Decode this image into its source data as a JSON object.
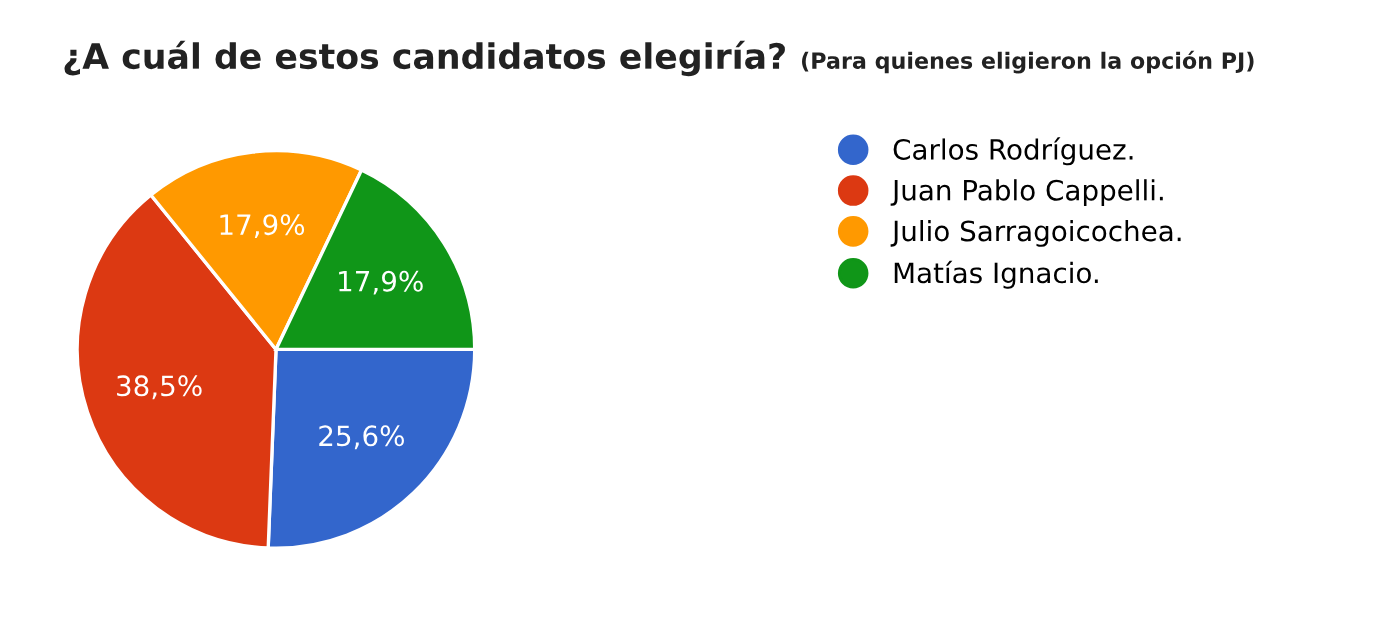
{
  "chart_data": {
    "type": "pie",
    "title": "¿A cuál de estos candidatos elegiría?",
    "subtitle": "(Para quienes eligieron la opción PJ)",
    "categories": [
      "Carlos Rodríguez.",
      "Juan Pablo Cappelli.",
      "Julio Sarragoicochea.",
      "Matías Ignacio."
    ],
    "values": [
      25.6,
      38.5,
      17.9,
      17.9
    ],
    "colors": [
      "#3366cc",
      "#dc3912",
      "#ff9900",
      "#109618"
    ],
    "value_labels": [
      "25,6%",
      "38,5%",
      "17,9%",
      "17,9%"
    ],
    "legend": "right"
  }
}
